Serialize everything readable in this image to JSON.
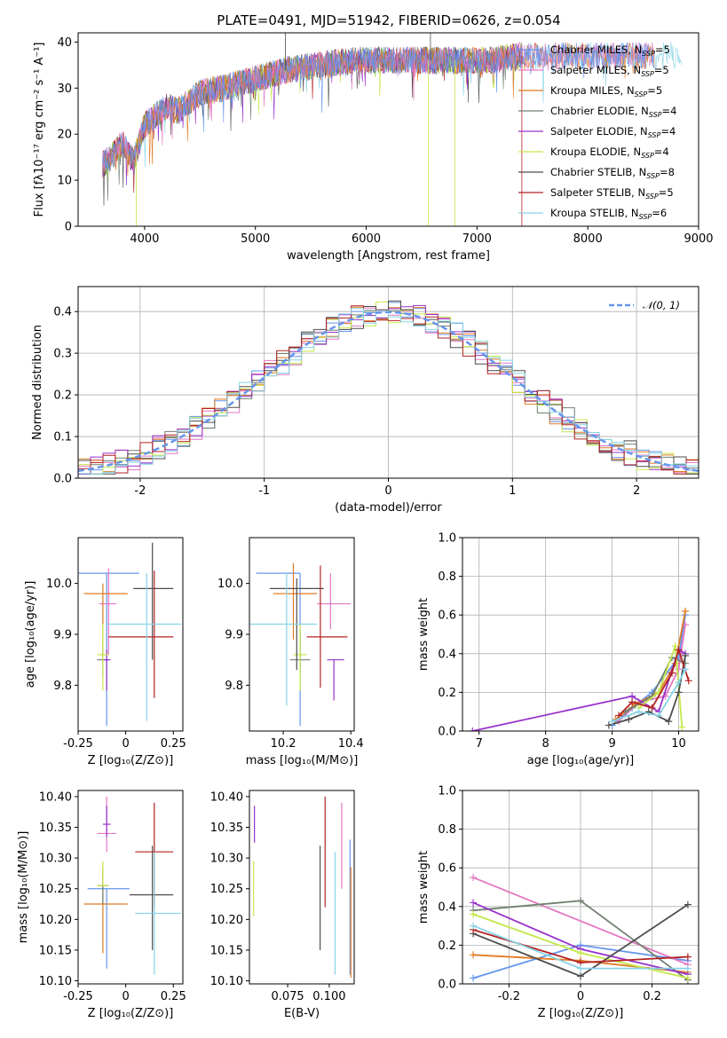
{
  "figure": {
    "title": "PLATE=0491, MJD=51942, FIBERID=0626, z=0.054"
  },
  "colors": {
    "Chabrier MILES": "#6495ed",
    "Salpeter MILES": "#e377c2",
    "Kroupa MILES": "#e07b23",
    "Chabrier ELODIE": "#708070",
    "Salpeter ELODIE": "#9932cc",
    "Kroupa ELODIE": "#c5e84a",
    "Chabrier STELIB": "#4d4d4d",
    "Salpeter STELIB": "#b22222",
    "Kroupa STELIB": "#87d3e6"
  },
  "chart_data": [
    {
      "id": "spectrum",
      "type": "line",
      "title": "PLATE=0491, MJD=51942, FIBERID=0626, z=0.054",
      "xlabel": "wavelength [Angstrom, rest frame]",
      "ylabel": "Flux [fλ10⁻¹⁷ erg cm⁻² s⁻¹ A⁻¹]",
      "xlim": [
        3400,
        9000
      ],
      "ylim": [
        0,
        42
      ],
      "xticks": [
        4000,
        5000,
        6000,
        7000,
        8000,
        9000
      ],
      "yticks": [
        0,
        10,
        20,
        30,
        40
      ],
      "legend_position": "upper right",
      "series": [
        {
          "name": "Chabrier MILES, N_SSP=5",
          "legend": "Chabrier MILES, N",
          "sub": "SSP",
          "suffix": "=5"
        },
        {
          "name": "Salpeter MILES, N_SSP=5",
          "legend": "Salpeter MILES, N",
          "sub": "SSP",
          "suffix": "=5"
        },
        {
          "name": "Kroupa MILES, N_SSP=5",
          "legend": "Kroupa MILES, N",
          "sub": "SSP",
          "suffix": "=5"
        },
        {
          "name": "Chabrier ELODIE, N_SSP=4",
          "legend": "Chabrier ELODIE, N",
          "sub": "SSP",
          "suffix": "=4"
        },
        {
          "name": "Salpeter ELODIE, N_SSP=4",
          "legend": "Salpeter ELODIE, N",
          "sub": "SSP",
          "suffix": "=4"
        },
        {
          "name": "Kroupa ELODIE, N_SSP=4",
          "legend": "Kroupa ELODIE, N",
          "sub": "SSP",
          "suffix": "=4"
        },
        {
          "name": "Chabrier STELIB, N_SSP=8",
          "legend": "Chabrier STELIB, N",
          "sub": "SSP",
          "suffix": "=8"
        },
        {
          "name": "Salpeter STELIB, N_SSP=5",
          "legend": "Salpeter STELIB, N",
          "sub": "SSP",
          "suffix": "=5"
        },
        {
          "name": "Kroupa STELIB, N_SSP=6",
          "legend": "Kroupa STELIB, N",
          "sub": "SSP",
          "suffix": "=6"
        }
      ],
      "continuum": {
        "x": [
          3600,
          3700,
          3800,
          3900,
          4000,
          4100,
          4200,
          4300,
          4500,
          4700,
          5000,
          5300,
          5600,
          5900,
          6200,
          6500,
          6800,
          7100,
          7400,
          7700,
          8000,
          8300,
          8600,
          8800,
          9000
        ],
        "y": [
          13,
          15,
          18,
          14,
          22,
          24,
          26,
          25,
          29,
          30,
          32,
          34,
          35,
          36,
          36,
          36,
          36,
          36,
          37,
          37,
          37,
          37,
          37,
          37,
          37
        ]
      }
    },
    {
      "id": "residuals",
      "type": "histogram",
      "xlabel": "(data-model)/error",
      "ylabel": "Normed distribution",
      "xlim": [
        -2.5,
        2.5
      ],
      "ylim": [
        0,
        0.46
      ],
      "xticks": [
        -2,
        -1,
        0,
        1,
        2
      ],
      "yticks": [
        0.0,
        0.1,
        0.2,
        0.3,
        0.4
      ],
      "legend_entries": [
        "𝒩(0, 1)"
      ],
      "reference_curve": "normal(0,1)"
    },
    {
      "id": "age_vs_Z",
      "type": "scatter",
      "xlabel": "Z [log₁₀(Z/Z⊙)]",
      "ylabel": "age  [log₁₀(age/yr)]",
      "xlim": [
        -0.25,
        0.3
      ],
      "ylim": [
        9.71,
        10.09
      ],
      "xticks": [
        -0.25,
        0.0,
        0.25
      ],
      "yticks": [
        9.8,
        9.9,
        10.0
      ],
      "points": [
        {
          "series": "Chabrier MILES",
          "x": -0.1,
          "y": 10.02,
          "xerr": [
            0.2,
            0.17
          ],
          "yerr": [
            0.3,
            0.0
          ]
        },
        {
          "series": "Salpeter MILES",
          "x": -0.09,
          "y": 9.96,
          "xerr": [
            0.05,
            0.04
          ],
          "yerr": [
            0.1,
            0.07
          ]
        },
        {
          "series": "Kroupa MILES",
          "x": -0.12,
          "y": 9.98,
          "xerr": [
            0.1,
            0.13
          ],
          "yerr": [
            0.13,
            0.02
          ]
        },
        {
          "series": "Chabrier ELODIE",
          "x": -0.12,
          "y": 9.85,
          "xerr": [
            0.03,
            0.03
          ],
          "yerr": [
            0.03,
            0.03
          ]
        },
        {
          "series": "Salpeter ELODIE",
          "x": -0.1,
          "y": 9.85,
          "xerr": [
            0.02,
            0.02
          ],
          "yerr": [
            0.06,
            0.02
          ]
        },
        {
          "series": "Kroupa ELODIE",
          "x": -0.12,
          "y": 9.86,
          "xerr": [
            0.03,
            0.03
          ],
          "yerr": [
            0.07,
            0.06
          ]
        },
        {
          "series": "Chabrier STELIB",
          "x": 0.14,
          "y": 9.99,
          "xerr": [
            0.1,
            0.11
          ],
          "yerr": [
            0.14,
            0.09
          ]
        },
        {
          "series": "Salpeter STELIB",
          "x": 0.15,
          "y": 9.895,
          "xerr": [
            0.24,
            0.1
          ],
          "yerr": [
            0.12,
            0.13
          ]
        },
        {
          "series": "Kroupa STELIB",
          "x": 0.11,
          "y": 9.92,
          "xerr": [
            0.21,
            0.18
          ],
          "yerr": [
            0.19,
            0.1
          ]
        }
      ]
    },
    {
      "id": "age_vs_mass",
      "type": "scatter",
      "xlabel": "mass [log₁₀(M/M⊙)]",
      "ylabel": "",
      "xlim": [
        10.1,
        10.41
      ],
      "ylim": [
        9.71,
        10.09
      ],
      "xticks": [
        10.2,
        10.4
      ],
      "yticks": [
        9.8,
        9.9,
        10.0
      ],
      "points": [
        {
          "series": "Chabrier MILES",
          "x": 10.25,
          "y": 10.02,
          "xerr": [
            0.13,
            0.0
          ],
          "yerr": [
            0.3,
            0.0
          ]
        },
        {
          "series": "Salpeter MILES",
          "x": 10.34,
          "y": 9.96,
          "xerr": [
            0.04,
            0.06
          ],
          "yerr": [
            0.05,
            0.06
          ]
        },
        {
          "series": "Kroupa MILES",
          "x": 10.23,
          "y": 9.98,
          "xerr": [
            0.06,
            0.07
          ],
          "yerr": [
            0.09,
            0.06
          ]
        },
        {
          "series": "Chabrier ELODIE",
          "x": 10.25,
          "y": 9.85,
          "xerr": [
            0.03,
            0.03
          ],
          "yerr": [
            0.03,
            0.06
          ]
        },
        {
          "series": "Salpeter ELODIE",
          "x": 10.35,
          "y": 9.85,
          "xerr": [
            0.02,
            0.03
          ],
          "yerr": [
            0.08,
            0.0
          ]
        },
        {
          "series": "Kroupa ELODIE",
          "x": 10.25,
          "y": 9.86,
          "xerr": [
            0.02,
            0.02
          ],
          "yerr": [
            0.07,
            0.06
          ]
        },
        {
          "series": "Chabrier STELIB",
          "x": 10.24,
          "y": 9.99,
          "xerr": [
            0.08,
            0.08
          ],
          "yerr": [
            0.16,
            0.02
          ]
        },
        {
          "series": "Salpeter STELIB",
          "x": 10.31,
          "y": 9.895,
          "xerr": [
            0.04,
            0.08
          ],
          "yerr": [
            0.1,
            0.14
          ]
        },
        {
          "series": "Kroupa STELIB",
          "x": 10.21,
          "y": 9.92,
          "xerr": [
            0.11,
            0.09
          ],
          "yerr": [
            0.16,
            0.1
          ]
        }
      ]
    },
    {
      "id": "weight_vs_age",
      "type": "line",
      "xlabel": "age  [log₁₀(age/yr)]",
      "ylabel": "mass weight",
      "xlim": [
        6.75,
        10.3
      ],
      "ylim": [
        0,
        1
      ],
      "xticks": [
        7,
        8,
        9,
        10
      ],
      "yticks": [
        0.0,
        0.2,
        0.4,
        0.6,
        0.8,
        1.0
      ],
      "series": [
        {
          "name": "Chabrier MILES",
          "x": [
            9.0,
            9.3,
            9.6,
            10.0,
            10.1
          ],
          "y": [
            0.03,
            0.12,
            0.2,
            0.38,
            0.6
          ]
        },
        {
          "name": "Salpeter MILES",
          "x": [
            9.1,
            9.4,
            9.8,
            10.0,
            10.1
          ],
          "y": [
            0.05,
            0.15,
            0.18,
            0.32,
            0.55
          ]
        },
        {
          "name": "Kroupa MILES",
          "x": [
            9.05,
            9.35,
            9.7,
            9.95,
            10.1
          ],
          "y": [
            0.06,
            0.14,
            0.2,
            0.35,
            0.62
          ]
        },
        {
          "name": "Chabrier ELODIE",
          "x": [
            9.2,
            9.6,
            9.9,
            10.1
          ],
          "y": [
            0.1,
            0.18,
            0.38,
            0.35
          ]
        },
        {
          "name": "Salpeter ELODIE",
          "x": [
            6.9,
            9.3,
            9.7,
            10.0,
            10.1
          ],
          "y": [
            0.0,
            0.18,
            0.1,
            0.42,
            0.4
          ]
        },
        {
          "name": "Kroupa ELODIE",
          "x": [
            9.4,
            9.7,
            9.95,
            10.05
          ],
          "y": [
            0.12,
            0.2,
            0.44,
            0.02
          ]
        },
        {
          "name": "Chabrier STELIB",
          "x": [
            8.95,
            9.25,
            9.55,
            9.85,
            10.0,
            10.1
          ],
          "y": [
            0.03,
            0.06,
            0.1,
            0.05,
            0.2,
            0.39
          ]
        },
        {
          "name": "Salpeter STELIB",
          "x": [
            9.1,
            9.3,
            9.6,
            9.9,
            10.0,
            10.15
          ],
          "y": [
            0.08,
            0.15,
            0.12,
            0.3,
            0.42,
            0.26
          ]
        },
        {
          "name": "Kroupa STELIB",
          "x": [
            9.0,
            9.4,
            9.7,
            10.0,
            10.1
          ],
          "y": [
            0.05,
            0.1,
            0.08,
            0.25,
            0.32
          ]
        }
      ]
    },
    {
      "id": "mass_vs_Z",
      "type": "scatter",
      "xlabel": "Z [log₁₀(Z/Z⊙)]",
      "ylabel": "mass [log₁₀(M/M⊙)]",
      "xlim": [
        -0.25,
        0.3
      ],
      "ylim": [
        10.095,
        10.41
      ],
      "xticks": [
        -0.25,
        0.0,
        0.25
      ],
      "yticks": [
        10.1,
        10.15,
        10.2,
        10.25,
        10.3,
        10.35,
        10.4
      ],
      "points": [
        {
          "series": "Chabrier MILES",
          "x": -0.1,
          "y": 10.25,
          "xerr": [
            0.1,
            0.12
          ],
          "yerr": [
            0.13,
            0.0
          ]
        },
        {
          "series": "Salpeter MILES",
          "x": -0.1,
          "y": 10.34,
          "xerr": [
            0.05,
            0.05
          ],
          "yerr": [
            0.03,
            0.06
          ]
        },
        {
          "series": "Kroupa MILES",
          "x": -0.12,
          "y": 10.225,
          "xerr": [
            0.1,
            0.13
          ],
          "yerr": [
            0.08,
            0.06
          ]
        },
        {
          "series": "Chabrier ELODIE",
          "x": -0.12,
          "y": 10.255,
          "xerr": [
            0.03,
            0.03
          ],
          "yerr": [
            0.03,
            0.03
          ]
        },
        {
          "series": "Salpeter ELODIE",
          "x": -0.1,
          "y": 10.355,
          "xerr": [
            0.02,
            0.02
          ],
          "yerr": [
            0.02,
            0.03
          ]
        },
        {
          "series": "Kroupa ELODIE",
          "x": -0.12,
          "y": 10.255,
          "xerr": [
            0.03,
            0.03
          ],
          "yerr": [
            0.0,
            0.04
          ]
        },
        {
          "series": "Chabrier STELIB",
          "x": 0.14,
          "y": 10.24,
          "xerr": [
            0.12,
            0.11
          ],
          "yerr": [
            0.09,
            0.08
          ]
        },
        {
          "series": "Salpeter STELIB",
          "x": 0.15,
          "y": 10.31,
          "xerr": [
            0.1,
            0.1
          ],
          "yerr": [
            0.09,
            0.08
          ]
        },
        {
          "series": "Kroupa STELIB",
          "x": 0.15,
          "y": 10.21,
          "xerr": [
            0.1,
            0.14
          ],
          "yerr": [
            0.1,
            0.1
          ]
        }
      ]
    },
    {
      "id": "mass_vs_ebv",
      "type": "scatter",
      "xlabel": "E(B-V)",
      "ylabel": "",
      "xlim": [
        0.052,
        0.115
      ],
      "ylim": [
        10.095,
        10.41
      ],
      "xticks": [
        0.075,
        0.1
      ],
      "xtick_labels": [
        "0.075",
        "0.100"
      ],
      "yticks": [
        10.1,
        10.15,
        10.2,
        10.25,
        10.3,
        10.35,
        10.4
      ],
      "points": [
        {
          "series": "Chabrier MILES",
          "x": 0.1125,
          "y": 10.25,
          "yerr": [
            0.14,
            0.08
          ]
        },
        {
          "series": "Salpeter MILES",
          "x": 0.1075,
          "y": 10.34,
          "yerr": [
            0.09,
            0.05
          ]
        },
        {
          "series": "Kroupa MILES",
          "x": 0.113,
          "y": 10.225,
          "yerr": [
            0.12,
            0.06
          ]
        },
        {
          "series": "Salpeter ELODIE",
          "x": 0.055,
          "y": 10.355,
          "yerr": [
            0.03,
            0.03
          ]
        },
        {
          "series": "Kroupa ELODIE",
          "x": 0.0545,
          "y": 10.255,
          "yerr": [
            0.05,
            0.04
          ]
        },
        {
          "series": "Chabrier STELIB",
          "x": 0.0945,
          "y": 10.24,
          "yerr": [
            0.09,
            0.08
          ]
        },
        {
          "series": "Salpeter STELIB",
          "x": 0.0975,
          "y": 10.31,
          "yerr": [
            0.09,
            0.09
          ]
        },
        {
          "series": "Kroupa STELIB",
          "x": 0.1035,
          "y": 10.21,
          "yerr": [
            0.1,
            0.1
          ]
        }
      ]
    },
    {
      "id": "weight_vs_Z",
      "type": "line",
      "xlabel": "Z [log₁₀(Z/Z⊙)]",
      "ylabel": "mass weight",
      "xlim": [
        -0.33,
        0.33
      ],
      "ylim": [
        0,
        1
      ],
      "xticks": [
        -0.2,
        0.0,
        0.2
      ],
      "yticks": [
        0.0,
        0.2,
        0.4,
        0.6,
        0.8,
        1.0
      ],
      "series": [
        {
          "name": "Chabrier MILES",
          "x": [
            -0.3,
            0.0,
            0.3
          ],
          "y": [
            0.03,
            0.2,
            0.12
          ]
        },
        {
          "name": "Salpeter MILES",
          "x": [
            -0.3,
            0.3
          ],
          "y": [
            0.55,
            0.1
          ]
        },
        {
          "name": "Kroupa MILES",
          "x": [
            -0.3,
            0.0,
            0.3
          ],
          "y": [
            0.15,
            0.12,
            0.06
          ]
        },
        {
          "name": "Chabrier ELODIE",
          "x": [
            -0.3,
            0.0,
            0.3
          ],
          "y": [
            0.38,
            0.43,
            0.02
          ]
        },
        {
          "name": "Salpeter ELODIE",
          "x": [
            -0.3,
            0.0,
            0.3
          ],
          "y": [
            0.42,
            0.18,
            0.05
          ]
        },
        {
          "name": "Kroupa ELODIE",
          "x": [
            -0.3,
            0.0,
            0.3
          ],
          "y": [
            0.36,
            0.16,
            0.03
          ]
        },
        {
          "name": "Chabrier STELIB",
          "x": [
            -0.3,
            0.0,
            0.3
          ],
          "y": [
            0.26,
            0.04,
            0.41
          ]
        },
        {
          "name": "Salpeter STELIB",
          "x": [
            -0.3,
            0.0,
            0.3
          ],
          "y": [
            0.28,
            0.11,
            0.14
          ]
        },
        {
          "name": "Kroupa STELIB",
          "x": [
            -0.3,
            0.0,
            0.3
          ],
          "y": [
            0.3,
            0.08,
            0.08
          ]
        }
      ]
    }
  ]
}
